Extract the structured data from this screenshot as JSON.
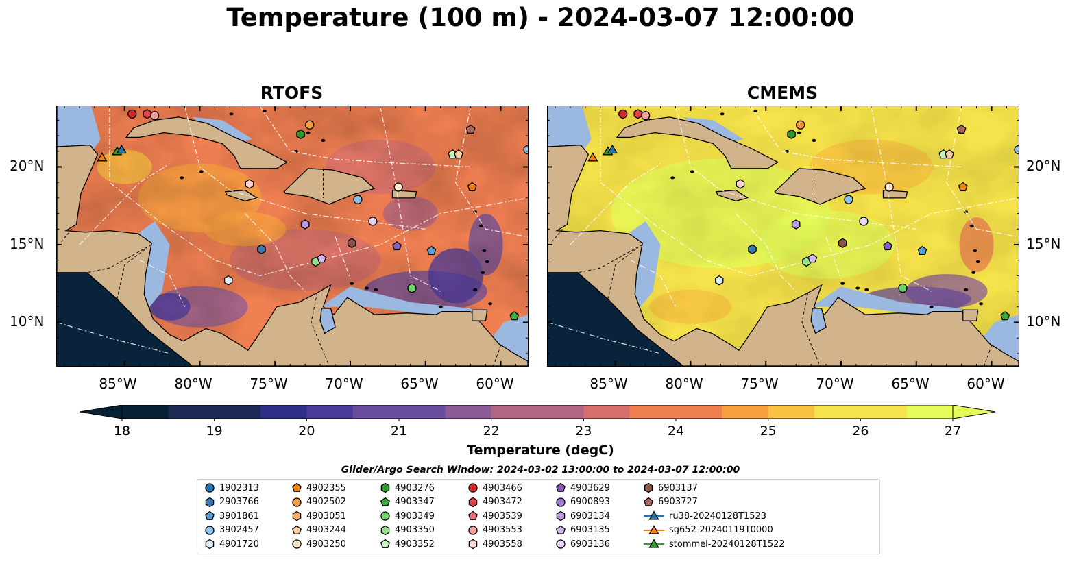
{
  "title": "Temperature (100 m) - 2024-03-07 12:00:00",
  "panels": [
    {
      "title": "RTOFS",
      "variant": "rtofs"
    },
    {
      "title": "CMEMS",
      "variant": "cmems"
    }
  ],
  "map": {
    "extent_lon": [
      -89.5,
      -58.2
    ],
    "extent_lat": [
      7.2,
      23.9
    ],
    "lon_ticks": [
      "85°W",
      "80°W",
      "75°W",
      "70°W",
      "65°W",
      "60°W"
    ],
    "lat_ticks": [
      "20°N",
      "15°N",
      "10°N"
    ],
    "land_color": "#d2b48c",
    "shelf_color": "#9ab8e0",
    "deep_color": "#08233a"
  },
  "colorbar": {
    "label": "Temperature (degC)",
    "ticks": [
      "18",
      "19",
      "20",
      "21",
      "22",
      "23",
      "24",
      "25",
      "26",
      "27"
    ],
    "range": [
      18,
      27
    ],
    "colormap": [
      "#062134",
      "#1d2b54",
      "#2f2e86",
      "#4a3a98",
      "#6a4d9c",
      "#8b5b98",
      "#b06585",
      "#d6706f",
      "#f07f52",
      "#f8a140",
      "#fac242",
      "#f6e24a",
      "#e6fb5a"
    ],
    "extend": "both"
  },
  "search_window": "Glider/Argo Search Window: 2024-03-02 13:00:00 to 2024-03-07 12:00:00",
  "legend": {
    "items": [
      {
        "label": "1902313",
        "marker": "circle",
        "color": "#1f77b4"
      },
      {
        "label": "2903766",
        "marker": "hexagon",
        "color": "#3a78b0"
      },
      {
        "label": "3901861",
        "marker": "pentagon",
        "color": "#5a9fd4"
      },
      {
        "label": "3902457",
        "marker": "circle",
        "color": "#8ec2ea"
      },
      {
        "label": "4901720",
        "marker": "hexagon",
        "color": "#dcecfa"
      },
      {
        "label": "4902355",
        "marker": "pentagon",
        "color": "#f07f10"
      },
      {
        "label": "4902502",
        "marker": "circle",
        "color": "#f59a3c"
      },
      {
        "label": "4903051",
        "marker": "hexagon",
        "color": "#f8b060"
      },
      {
        "label": "4903244",
        "marker": "pentagon",
        "color": "#fbcfa2"
      },
      {
        "label": "4903250",
        "marker": "circle",
        "color": "#fde6cc"
      },
      {
        "label": "4903276",
        "marker": "hexagon",
        "color": "#2b9a2b"
      },
      {
        "label": "4903347",
        "marker": "pentagon",
        "color": "#3aaa3a"
      },
      {
        "label": "4903349",
        "marker": "circle",
        "color": "#6fcf6a"
      },
      {
        "label": "4903350",
        "marker": "hexagon",
        "color": "#98e48e"
      },
      {
        "label": "4903352",
        "marker": "pentagon",
        "color": "#c8f5c0"
      },
      {
        "label": "4903466",
        "marker": "circle",
        "color": "#d62728"
      },
      {
        "label": "4903472",
        "marker": "hexagon",
        "color": "#e0464a"
      },
      {
        "label": "4903539",
        "marker": "pentagon",
        "color": "#ef6f72"
      },
      {
        "label": "4903553",
        "marker": "circle",
        "color": "#f4a0a0"
      },
      {
        "label": "4903558",
        "marker": "hexagon",
        "color": "#fbd3d3"
      },
      {
        "label": "4903629",
        "marker": "pentagon",
        "color": "#8c5bc0"
      },
      {
        "label": "6900893",
        "marker": "circle",
        "color": "#a07cd0"
      },
      {
        "label": "6903134",
        "marker": "hexagon",
        "color": "#b99ae0"
      },
      {
        "label": "6903135",
        "marker": "pentagon",
        "color": "#d2b8ee"
      },
      {
        "label": "6903136",
        "marker": "circle",
        "color": "#e8d4f8"
      },
      {
        "label": "6903137",
        "marker": "hexagon",
        "color": "#8c564b"
      },
      {
        "label": "6903727",
        "marker": "pentagon",
        "color": "#a86a5c"
      },
      {
        "label": "ru38-20240128T1523",
        "marker": "triangle-line",
        "color": "#1f77b4"
      },
      {
        "label": "sg652-20240119T0000",
        "marker": "triangle-line",
        "color": "#ff7f0e"
      },
      {
        "label": "stommel-20240128T1522",
        "marker": "triangle-line",
        "color": "#2ca02c"
      }
    ]
  },
  "stations": [
    {
      "id": "4903466",
      "lon": -84.5,
      "lat": 23.4
    },
    {
      "id": "4903472",
      "lon": -83.5,
      "lat": 23.4
    },
    {
      "id": "4903553",
      "lon": -83.0,
      "lat": 23.3
    },
    {
      "id": "4902502",
      "lon": -72.7,
      "lat": 22.7
    },
    {
      "id": "4903276",
      "lon": -73.3,
      "lat": 22.1
    },
    {
      "id": "6903727",
      "lon": -62.0,
      "lat": 22.4
    },
    {
      "id": "4903352",
      "lon": -63.2,
      "lat": 20.8
    },
    {
      "id": "4903244",
      "lon": -62.8,
      "lat": 20.8
    },
    {
      "id": "3902457",
      "lon": -58.2,
      "lat": 21.1
    },
    {
      "id": "sg652-20240119T0000",
      "lon": -86.5,
      "lat": 20.6
    },
    {
      "id": "stommel-20240128T1522",
      "lon": -85.5,
      "lat": 21.0
    },
    {
      "id": "ru38-20240128T1523",
      "lon": -85.2,
      "lat": 21.1
    },
    {
      "id": "4903558",
      "lon": -76.7,
      "lat": 18.9
    },
    {
      "id": "4903250",
      "lon": -66.8,
      "lat": 18.7
    },
    {
      "id": "4902355",
      "lon": -61.9,
      "lat": 18.7
    },
    {
      "id": "3902457",
      "lon": -69.5,
      "lat": 17.9
    },
    {
      "id": "6903136",
      "lon": -68.5,
      "lat": 16.5
    },
    {
      "id": "6903134",
      "lon": -73.0,
      "lat": 16.3
    },
    {
      "id": "6903137",
      "lon": -69.9,
      "lat": 15.1
    },
    {
      "id": "4903629",
      "lon": -66.9,
      "lat": 14.9
    },
    {
      "id": "3901861",
      "lon": -64.6,
      "lat": 14.6
    },
    {
      "id": "2903766",
      "lon": -75.9,
      "lat": 14.7
    },
    {
      "id": "4903350",
      "lon": -72.3,
      "lat": 13.9
    },
    {
      "id": "6903135",
      "lon": -71.9,
      "lat": 14.1
    },
    {
      "id": "4901720",
      "lon": -78.1,
      "lat": 12.7
    },
    {
      "id": "4903349",
      "lon": -65.9,
      "lat": 12.2
    },
    {
      "id": "4903347",
      "lon": -59.1,
      "lat": 10.4
    }
  ]
}
